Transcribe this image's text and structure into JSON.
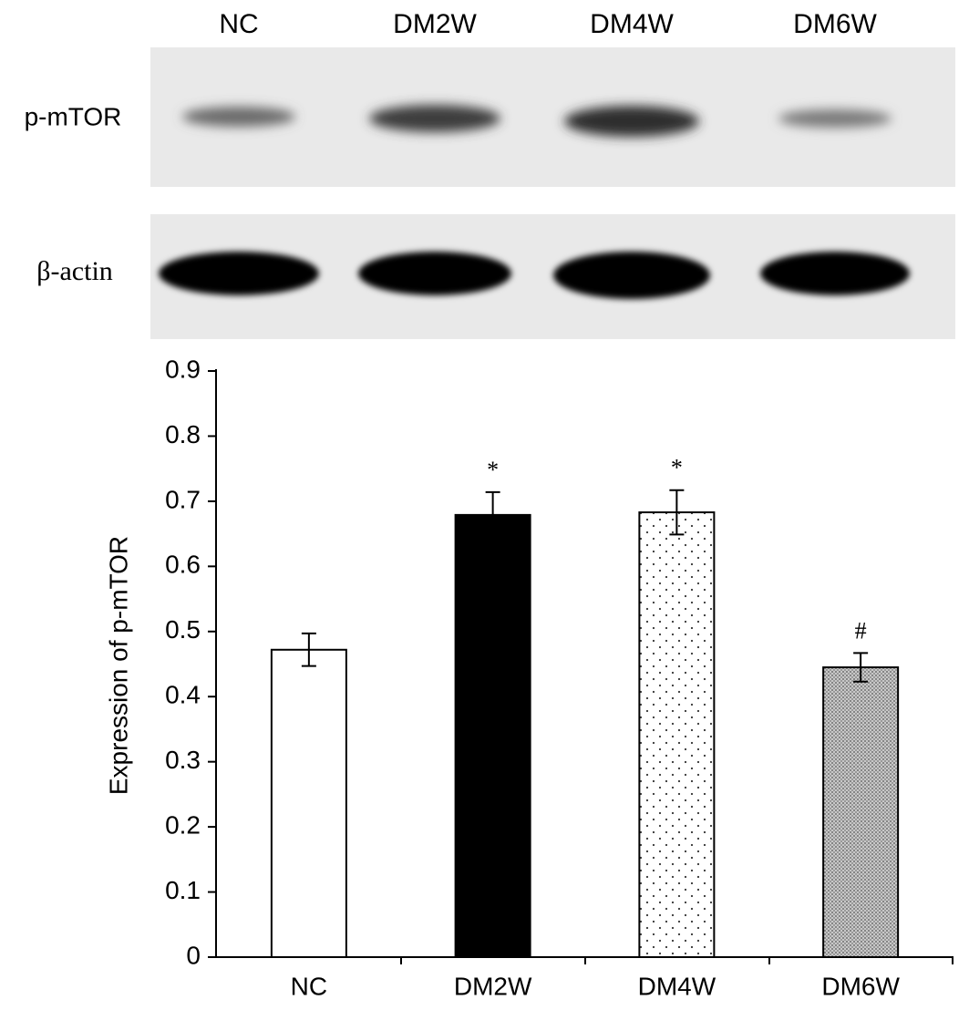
{
  "chart_data": {
    "type": "bar",
    "blot_lanes": [
      "NC",
      "DM2W",
      "DM4W",
      "DM6W"
    ],
    "blot_rows": [
      "p-mTOR",
      "β-actin"
    ],
    "y_label": "Expression of p-mTOR",
    "categories": [
      "NC",
      "DM2W",
      "DM4W",
      "DM6W"
    ],
    "values": [
      0.472,
      0.679,
      0.683,
      0.445
    ],
    "errors": [
      0.025,
      0.035,
      0.034,
      0.022
    ],
    "significance": [
      null,
      "*",
      "*",
      "#"
    ],
    "bar_styles": [
      "white",
      "black",
      "sparse-dots",
      "dense-dots"
    ],
    "ylim": [
      0,
      0.9
    ],
    "yticks": [
      0,
      0.1,
      0.2,
      0.3,
      0.4,
      0.5,
      0.6,
      0.7,
      0.8,
      0.9
    ]
  }
}
